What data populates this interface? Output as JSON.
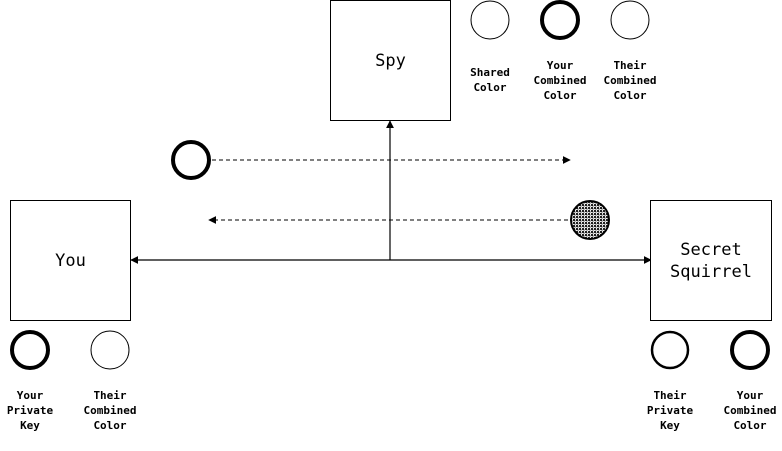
{
  "nodes": {
    "spy": {
      "label": "Spy"
    },
    "you": {
      "label": "You"
    },
    "squirrel": {
      "label": "Secret\nSquirrel"
    }
  },
  "circles": {
    "shared_color": {
      "label": "Shared\nColor",
      "style": "thin"
    },
    "spy_your_combined": {
      "label": "Your\nCombined\nColor",
      "style": "thick"
    },
    "spy_their_combined": {
      "label": "Their\nCombined\nColor",
      "style": "thin"
    },
    "you_private_key": {
      "label": "Your\nPrivate\nKey",
      "style": "thick"
    },
    "you_their_combined": {
      "label": "Their\nCombined\nColor",
      "style": "thin"
    },
    "squirrel_private_key": {
      "label": "Their\nPrivate\nKey",
      "style": "thick"
    },
    "squirrel_your_combined": {
      "label": "Your\nCombined\nColor",
      "style": "thick"
    }
  },
  "messages": {
    "sent": {
      "direction": "right",
      "style": "thick"
    },
    "received": {
      "direction": "left",
      "style": "stippled"
    }
  },
  "colors": {
    "stroke": "#000000",
    "background": "#ffffff",
    "stipple": "#555555"
  }
}
